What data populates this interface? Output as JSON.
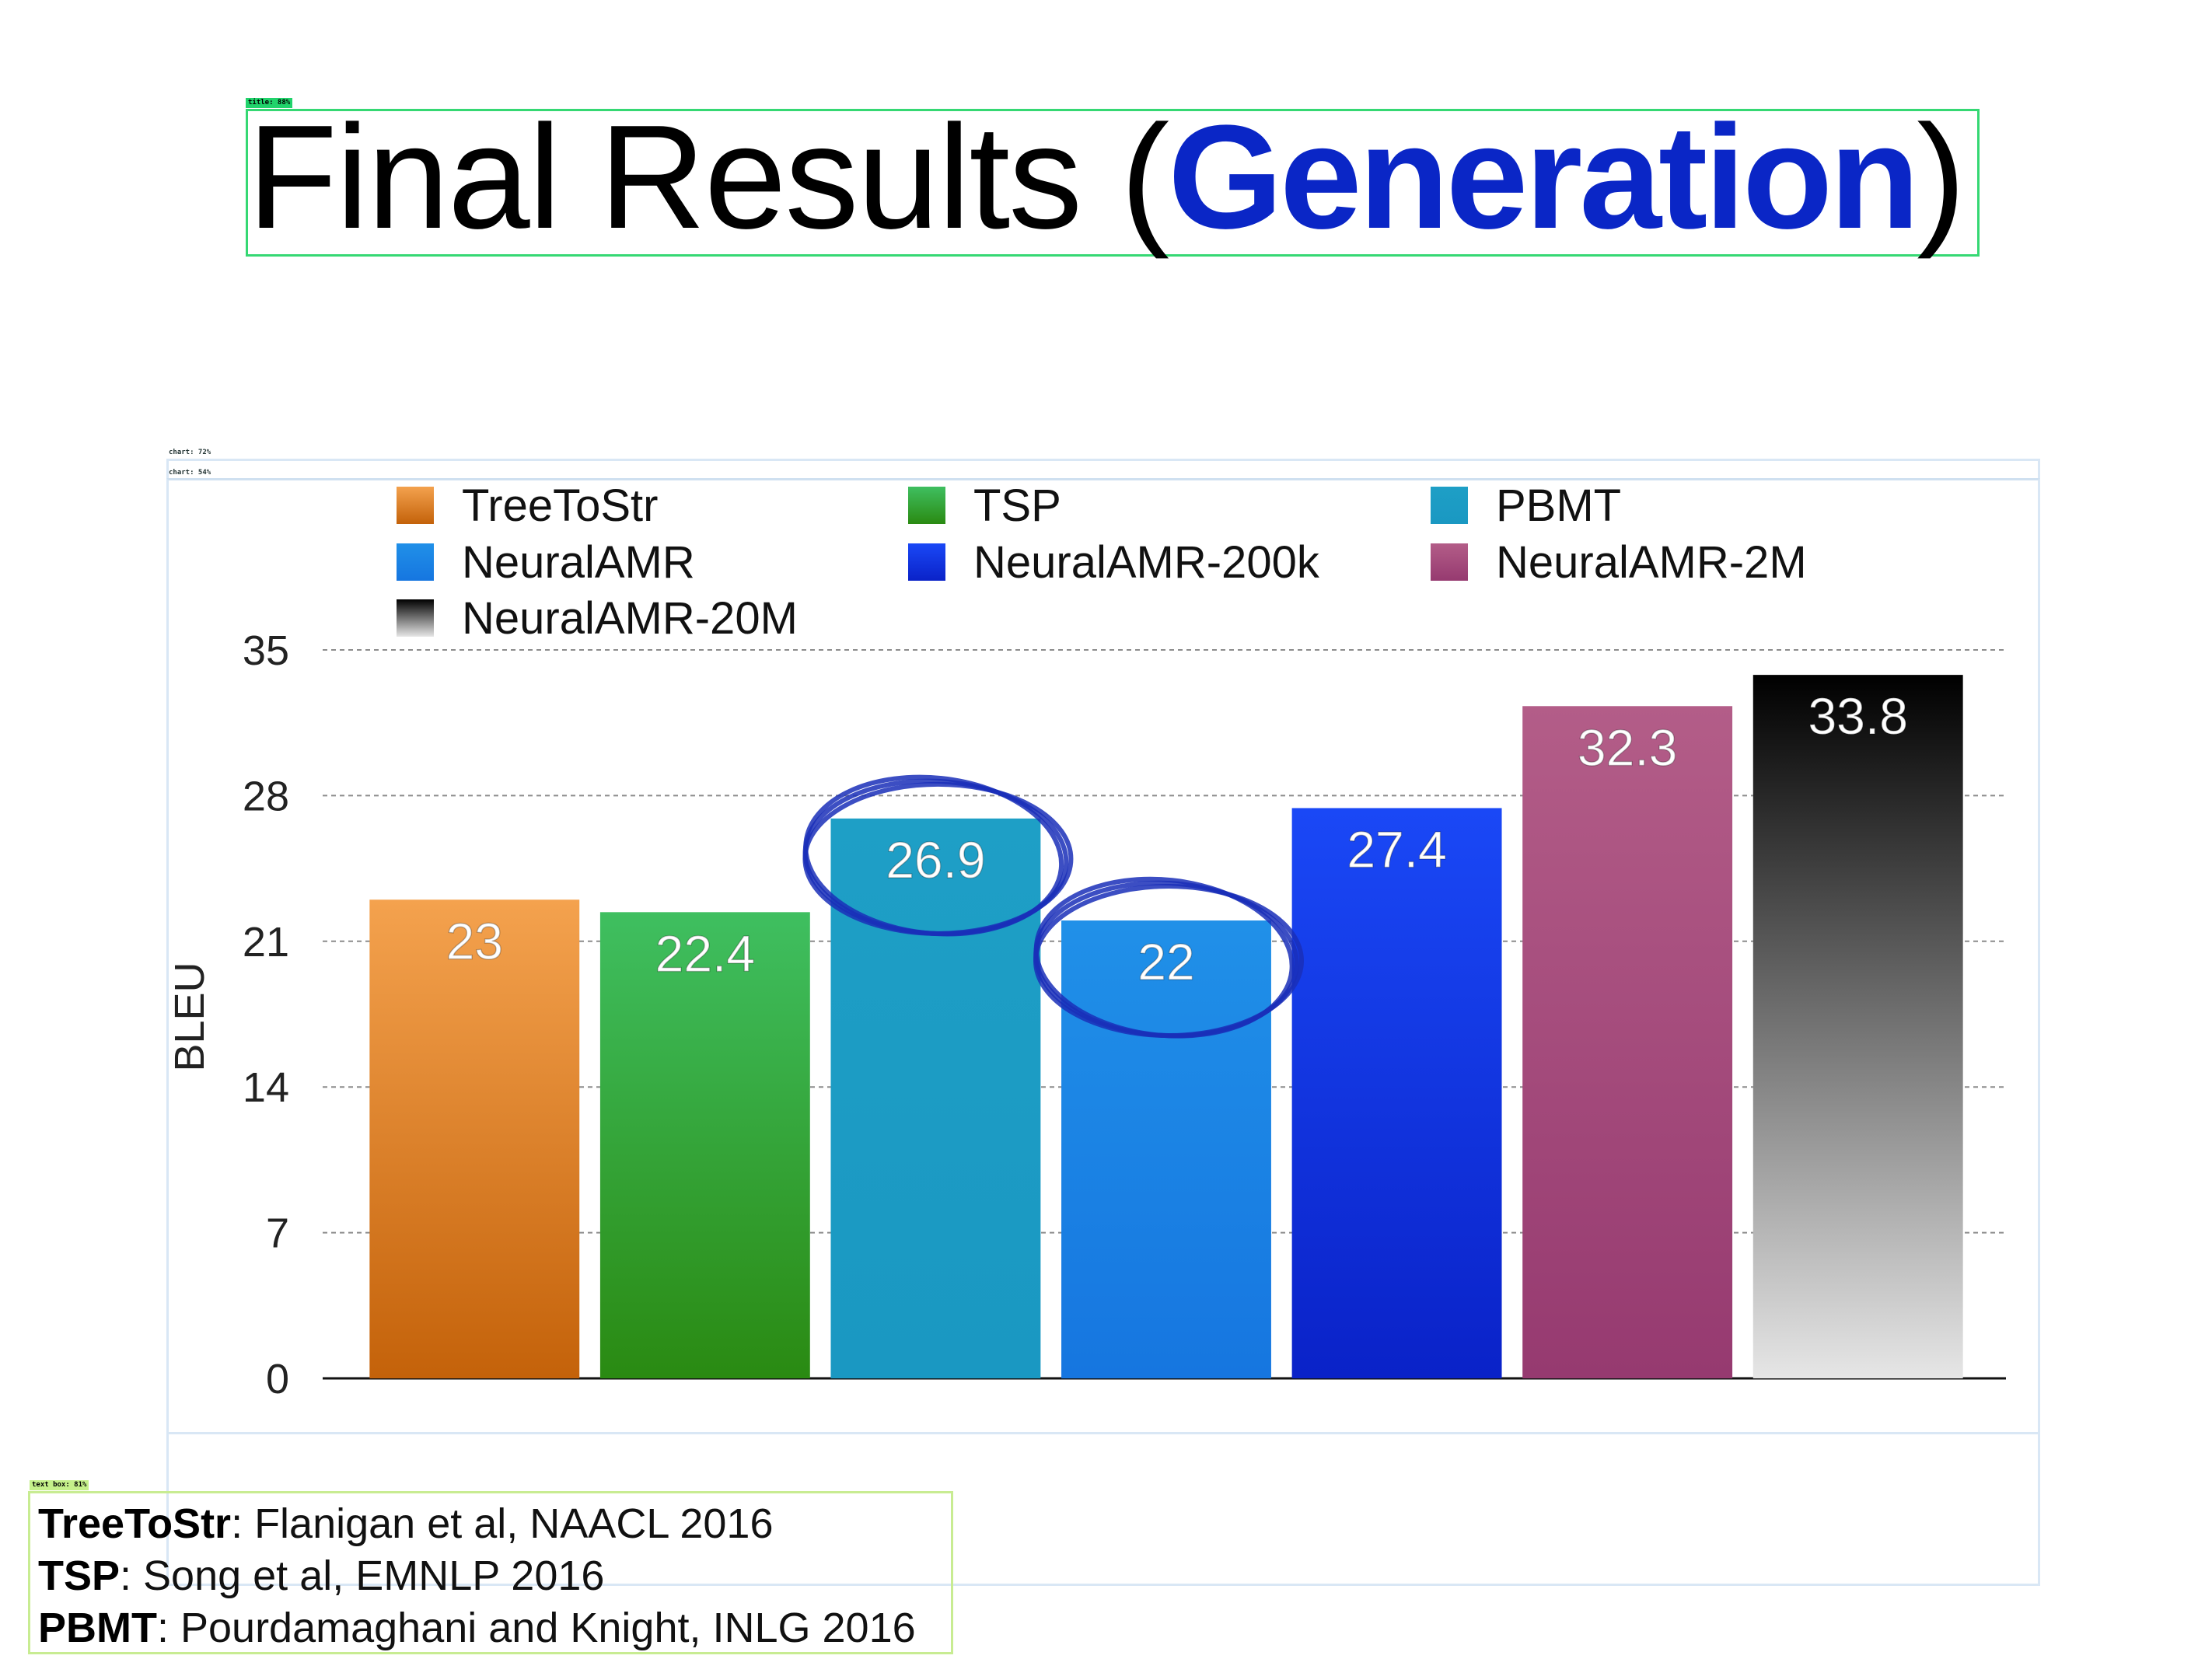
{
  "title": {
    "prefix": "Final Results (",
    "highlight": "Generation",
    "suffix": ")"
  },
  "detections": {
    "title_tag": "title: 88%",
    "chart_tag_1": "chart: 72%",
    "chart_tag_2": "chart: 54%",
    "textbox_tag": "text box: 81%"
  },
  "chart_data": {
    "type": "bar",
    "title": "",
    "xlabel": "",
    "ylabel": "BLEU",
    "ylim": [
      0,
      35
    ],
    "yticks": [
      0,
      7,
      14,
      21,
      28,
      35
    ],
    "grid": true,
    "legend_position": "top",
    "series": [
      {
        "name": "TreeToStr",
        "value": 23,
        "label": "23",
        "color_top": "#f4a24e",
        "color_bottom": "#c4620a"
      },
      {
        "name": "TSP",
        "value": 22.4,
        "label": "22.4",
        "color_top": "#3fbf60",
        "color_bottom": "#2a8a12"
      },
      {
        "name": "PBMT",
        "value": 26.9,
        "label": "26.9",
        "color_top": "#1e9fc6",
        "color_bottom": "#1a98c2"
      },
      {
        "name": "NeuralAMR",
        "value": 22,
        "label": "22",
        "color_top": "#2090e8",
        "color_bottom": "#1676e0"
      },
      {
        "name": "NeuralAMR-200k",
        "value": 27.4,
        "label": "27.4",
        "color_top": "#1a48f6",
        "color_bottom": "#0a22c8"
      },
      {
        "name": "NeuralAMR-2M",
        "value": 32.3,
        "label": "32.3",
        "color_top": "#b35d88",
        "color_bottom": "#963a70"
      },
      {
        "name": "NeuralAMR-20M",
        "value": 33.8,
        "label": "33.8",
        "color_top": "#000000",
        "color_bottom": "#e6e6e6"
      }
    ],
    "legend_order": [
      "TreeToStr",
      "TSP",
      "PBMT",
      "NeuralAMR",
      "NeuralAMR-200k",
      "NeuralAMR-2M",
      "NeuralAMR-20M"
    ],
    "annotations": [
      "hand-drawn blue circle around 26.9 (PBMT)",
      "hand-drawn blue circle around 22 (NeuralAMR)"
    ],
    "annotation_color": "#1a2fb8"
  },
  "references": [
    {
      "name": "TreeToStr",
      "cite": ": Flanigan et al, NAACL 2016"
    },
    {
      "name": "TSP",
      "cite": ": Song et al, EMNLP 2016"
    },
    {
      "name": "PBMT",
      "cite": ": Pourdamaghani and Knight, INLG 2016"
    }
  ]
}
